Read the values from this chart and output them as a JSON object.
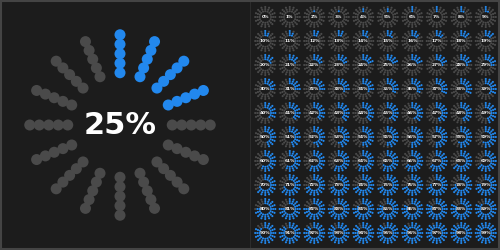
{
  "bg_color": "#1c1c1c",
  "large_circle_percent": 25,
  "dot_color_filled": "#2288ee",
  "dot_color_empty": "#4a4a4a",
  "text_color": "#ffffff",
  "large_text_size": 22,
  "large_num_spokes": 16,
  "large_dots_per_spoke": 5,
  "small_num_spokes": 16,
  "small_dots_per_spoke": 3,
  "small_text_size": 3.2,
  "border_color": "#444444",
  "small_cols": 10,
  "small_rows": 10
}
